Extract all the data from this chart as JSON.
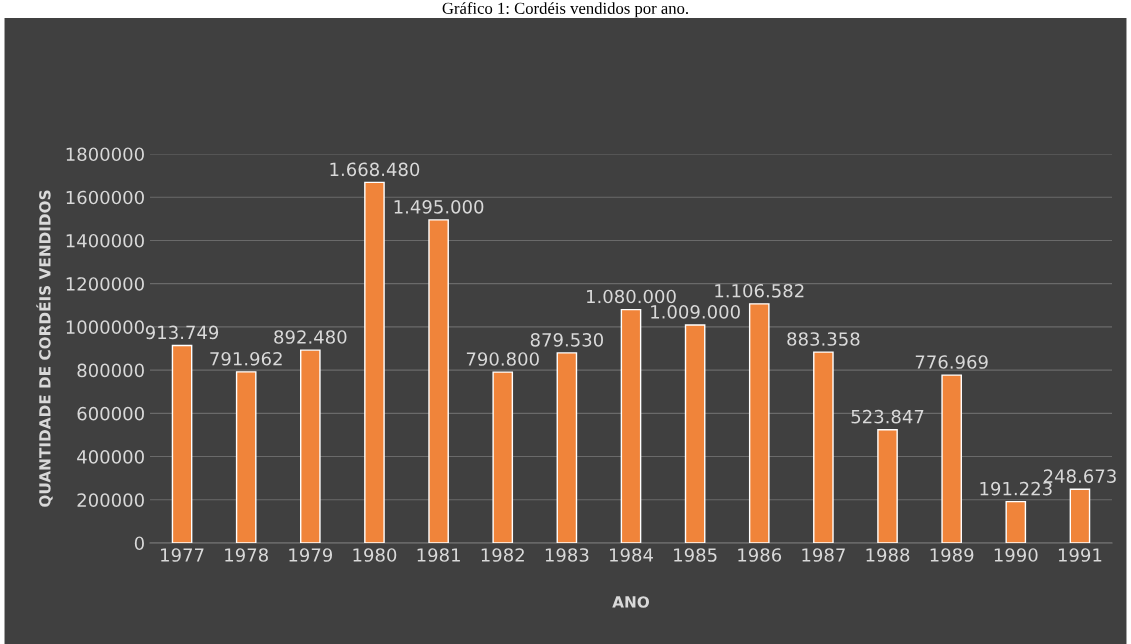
{
  "chart_data": {
    "type": "bar",
    "title": "Gráfico 1: Cordéis vendidos por ano.",
    "xlabel": "ANO",
    "ylabel": "QUANTIDADE DE CORDÉIS VENDIDOS",
    "categories": [
      "1977",
      "1978",
      "1979",
      "1980",
      "1981",
      "1982",
      "1983",
      "1984",
      "1985",
      "1986",
      "1987",
      "1988",
      "1989",
      "1990",
      "1991"
    ],
    "values": [
      913749,
      791962,
      892480,
      1668480,
      1495000,
      790800,
      879530,
      1080000,
      1009000,
      1106582,
      883358,
      523847,
      776969,
      191223,
      248673
    ],
    "value_labels": [
      "913.749",
      "791.962",
      "892.480",
      "1.668.480",
      "1.495.000",
      "790.800",
      "879.530",
      "1.080.000",
      "1.009.000",
      "1.106.582",
      "883.358",
      "523.847",
      "776.969",
      "191.223",
      "248.673"
    ],
    "color": "#f0843a",
    "ylim": [
      0,
      1800000
    ],
    "yticks": [
      0,
      200000,
      400000,
      600000,
      800000,
      1000000,
      1200000,
      1400000,
      1600000,
      1800000
    ],
    "grid": "y"
  }
}
